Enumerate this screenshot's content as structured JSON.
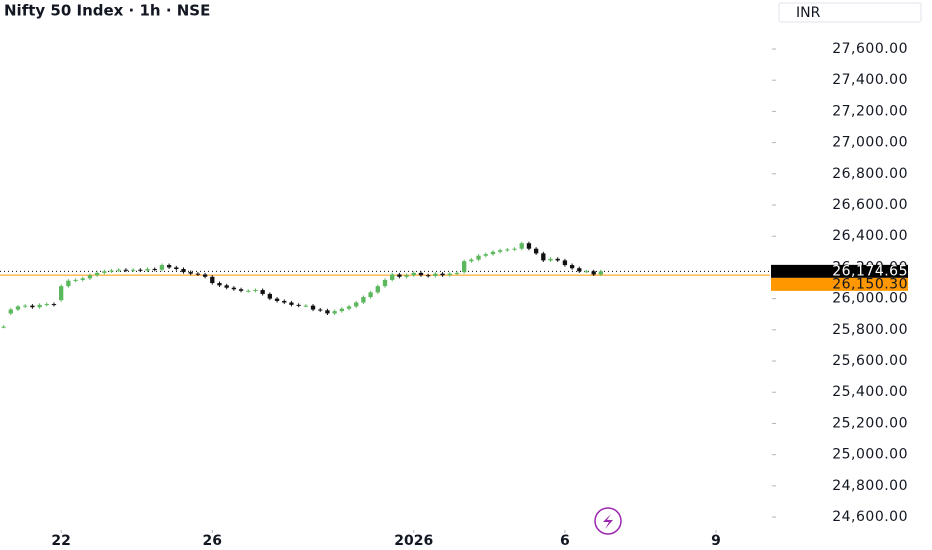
{
  "chart_data": {
    "type": "candlestick",
    "title": "Nifty 50 Index · 1h · NSE",
    "currency": "INR",
    "up_color": "#5cb85c",
    "down_color": "#111111",
    "open": [
      25820,
      25905,
      25930,
      25950,
      25955,
      25945,
      25960,
      25965,
      25990,
      26080,
      26115,
      26120,
      26130,
      26150,
      26165,
      26175,
      26180,
      26185,
      26180,
      26185,
      26180,
      26190,
      26185,
      26215,
      26200,
      26190,
      26170,
      26160,
      26155,
      26140,
      26100,
      26085,
      26070,
      26060,
      26050,
      26050,
      26055,
      26030,
      26000,
      25985,
      25975,
      25960,
      25955,
      25955,
      25930,
      25925,
      25905,
      25920,
      25935,
      25950,
      25975,
      26010,
      26040,
      26080,
      26120,
      26155,
      26140,
      26150,
      26165,
      26150,
      26145,
      26160,
      26150,
      26160,
      26170,
      26240,
      26250,
      26275,
      26285,
      26300,
      26310,
      26315,
      26320,
      26355,
      26320,
      26290,
      26245,
      26255,
      26245,
      26215,
      26195,
      26175,
      26175,
      26155
    ],
    "high": [
      25830,
      25940,
      25960,
      25965,
      25965,
      25970,
      25975,
      25975,
      26090,
      26125,
      26130,
      26140,
      26160,
      26175,
      26185,
      26190,
      26195,
      26195,
      26195,
      26195,
      26200,
      26200,
      26225,
      26225,
      26210,
      26200,
      26180,
      26170,
      26165,
      26150,
      26110,
      26095,
      26080,
      26070,
      26060,
      26065,
      26065,
      26040,
      26010,
      25995,
      25985,
      25970,
      25965,
      25965,
      25940,
      25935,
      25930,
      25945,
      25960,
      25985,
      26020,
      26050,
      26090,
      26130,
      26165,
      26165,
      26160,
      26175,
      26175,
      26160,
      26170,
      26170,
      26170,
      26175,
      26250,
      26260,
      26285,
      26295,
      26310,
      26320,
      26325,
      26330,
      26365,
      26365,
      26330,
      26300,
      26265,
      26265,
      26255,
      26225,
      26205,
      26185,
      26185,
      26185
    ],
    "low": [
      25810,
      25895,
      25920,
      25940,
      25935,
      25935,
      25950,
      25950,
      25980,
      26070,
      26105,
      26110,
      26120,
      26140,
      26155,
      26165,
      26170,
      26170,
      26170,
      26170,
      26170,
      26175,
      26175,
      26190,
      26180,
      26160,
      26150,
      26145,
      26130,
      26090,
      26075,
      26060,
      26050,
      26040,
      26040,
      26040,
      26020,
      25990,
      25975,
      25965,
      25950,
      25945,
      25945,
      25920,
      25915,
      25895,
      25895,
      25910,
      25925,
      25940,
      25965,
      26000,
      26030,
      26070,
      26110,
      26130,
      26130,
      26140,
      26140,
      26135,
      26135,
      26140,
      26140,
      26150,
      26160,
      26230,
      26240,
      26265,
      26275,
      26290,
      26300,
      26305,
      26310,
      26310,
      26280,
      26235,
      26235,
      26235,
      26205,
      26185,
      26165,
      26165,
      26145,
      26145
    ],
    "close": [
      25820,
      25930,
      25950,
      25955,
      25945,
      25960,
      25965,
      25960,
      26080,
      26115,
      26120,
      26130,
      26150,
      26165,
      26175,
      26180,
      26185,
      26180,
      26185,
      26180,
      26190,
      26185,
      26215,
      26200,
      26190,
      26170,
      26160,
      26155,
      26140,
      26100,
      26085,
      26070,
      26060,
      26050,
      26050,
      26055,
      26030,
      26000,
      25985,
      25975,
      25960,
      25955,
      25955,
      25930,
      25925,
      25905,
      25920,
      25935,
      25950,
      25975,
      26010,
      26040,
      26080,
      26120,
      26155,
      26140,
      26150,
      26165,
      26150,
      26145,
      26160,
      26150,
      26160,
      26165,
      26240,
      26250,
      26275,
      26285,
      26300,
      26310,
      26315,
      26320,
      26355,
      26320,
      26290,
      26245,
      26255,
      26245,
      26215,
      26195,
      26175,
      26175,
      26155,
      26174.65
    ],
    "xlim": [
      -0.5,
      106.5
    ],
    "xticks": [
      {
        "value": 8,
        "label": "22"
      },
      {
        "value": 29,
        "label": "26"
      },
      {
        "value": 57,
        "label": "2026"
      },
      {
        "value": 78,
        "label": "6"
      },
      {
        "value": 99,
        "label": "9"
      }
    ],
    "ylim": [
      24517,
      27914
    ],
    "yticks": [
      {
        "value": 24600,
        "label": "24,600.00"
      },
      {
        "value": 24800,
        "label": "24,800.00"
      },
      {
        "value": 25000,
        "label": "25,000.00"
      },
      {
        "value": 25200,
        "label": "25,200.00"
      },
      {
        "value": 25400,
        "label": "25,400.00"
      },
      {
        "value": 25600,
        "label": "25,600.00"
      },
      {
        "value": 25800,
        "label": "25,800.00"
      },
      {
        "value": 26000,
        "label": "26,000.00"
      },
      {
        "value": 26200,
        "label": "26,200.00"
      },
      {
        "value": 26400,
        "label": "26,400.00"
      },
      {
        "value": 26600,
        "label": "26,600.00"
      },
      {
        "value": 26800,
        "label": "26,800.00"
      },
      {
        "value": 27000,
        "label": "27,000.00"
      },
      {
        "value": 27200,
        "label": "27,200.00"
      },
      {
        "value": 27400,
        "label": "27,400.00"
      },
      {
        "value": 27600,
        "label": "27,600.00"
      }
    ],
    "last_price": {
      "value": 26174.65,
      "label": "26,174.65",
      "color": "#000000"
    },
    "previous_close": {
      "value": 26150.3,
      "label": "26,150.30",
      "color": "#ff9800"
    }
  }
}
